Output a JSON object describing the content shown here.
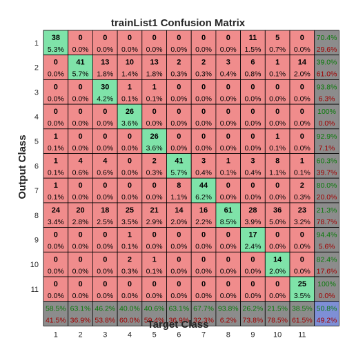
{
  "chart_data": {
    "type": "heatmap",
    "title": "trainList1 Confusion Matrix",
    "xlabel": "Target Class",
    "ylabel": "Output Class",
    "x_ticks": [
      "1",
      "2",
      "3",
      "4",
      "5",
      "6",
      "7",
      "8",
      "9",
      "10",
      "11"
    ],
    "y_ticks": [
      "1",
      "2",
      "3",
      "4",
      "5",
      "6",
      "7",
      "8",
      "9",
      "10",
      "11"
    ],
    "counts": [
      [
        "38",
        "0",
        "0",
        "0",
        "0",
        "0",
        "0",
        "0",
        "11",
        "5",
        "0"
      ],
      [
        "0",
        "41",
        "13",
        "10",
        "13",
        "2",
        "2",
        "3",
        "6",
        "1",
        "14"
      ],
      [
        "0",
        "0",
        "30",
        "1",
        "1",
        "0",
        "0",
        "0",
        "0",
        "0",
        "0"
      ],
      [
        "0",
        "0",
        "0",
        "26",
        "0",
        "0",
        "0",
        "0",
        "0",
        "0",
        "0"
      ],
      [
        "1",
        "0",
        "0",
        "0",
        "26",
        "0",
        "0",
        "0",
        "0",
        "1",
        "0"
      ],
      [
        "1",
        "4",
        "4",
        "0",
        "2",
        "41",
        "3",
        "1",
        "3",
        "8",
        "1"
      ],
      [
        "1",
        "0",
        "0",
        "0",
        "0",
        "8",
        "44",
        "0",
        "0",
        "0",
        "2"
      ],
      [
        "24",
        "20",
        "18",
        "25",
        "21",
        "14",
        "16",
        "61",
        "28",
        "36",
        "23"
      ],
      [
        "0",
        "0",
        "0",
        "1",
        "0",
        "0",
        "0",
        "0",
        "17",
        "0",
        "0"
      ],
      [
        "0",
        "0",
        "0",
        "2",
        "1",
        "0",
        "0",
        "0",
        "0",
        "14",
        "0"
      ],
      [
        "0",
        "0",
        "0",
        "0",
        "0",
        "0",
        "0",
        "0",
        "0",
        "0",
        "25"
      ]
    ],
    "percents": [
      [
        "5.3%",
        "0.0%",
        "0.0%",
        "0.0%",
        "0.0%",
        "0.0%",
        "0.0%",
        "0.0%",
        "1.5%",
        "0.7%",
        "0.0%"
      ],
      [
        "0.0%",
        "5.7%",
        "1.8%",
        "1.4%",
        "1.8%",
        "0.3%",
        "0.3%",
        "0.4%",
        "0.8%",
        "0.1%",
        "2.0%"
      ],
      [
        "0.0%",
        "0.0%",
        "4.2%",
        "0.1%",
        "0.1%",
        "0.0%",
        "0.0%",
        "0.0%",
        "0.0%",
        "0.0%",
        "0.0%"
      ],
      [
        "0.0%",
        "0.0%",
        "0.0%",
        "3.6%",
        "0.0%",
        "0.0%",
        "0.0%",
        "0.0%",
        "0.0%",
        "0.0%",
        "0.0%"
      ],
      [
        "0.1%",
        "0.0%",
        "0.0%",
        "0.0%",
        "3.6%",
        "0.0%",
        "0.0%",
        "0.0%",
        "0.0%",
        "0.1%",
        "0.0%"
      ],
      [
        "0.1%",
        "0.6%",
        "0.6%",
        "0.0%",
        "0.3%",
        "5.7%",
        "0.4%",
        "0.1%",
        "0.4%",
        "1.1%",
        "0.1%"
      ],
      [
        "0.1%",
        "0.0%",
        "0.0%",
        "0.0%",
        "0.0%",
        "1.1%",
        "6.2%",
        "0.0%",
        "0.0%",
        "0.0%",
        "0.3%"
      ],
      [
        "3.4%",
        "2.8%",
        "2.5%",
        "3.5%",
        "2.9%",
        "2.0%",
        "2.2%",
        "8.5%",
        "3.9%",
        "5.0%",
        "3.2%"
      ],
      [
        "0.0%",
        "0.0%",
        "0.0%",
        "0.1%",
        "0.0%",
        "0.0%",
        "0.0%",
        "0.0%",
        "2.4%",
        "0.0%",
        "0.0%"
      ],
      [
        "0.0%",
        "0.0%",
        "0.0%",
        "0.3%",
        "0.1%",
        "0.0%",
        "0.0%",
        "0.0%",
        "0.0%",
        "2.0%",
        "0.0%"
      ],
      [
        "0.0%",
        "0.0%",
        "0.0%",
        "0.0%",
        "0.0%",
        "0.0%",
        "0.0%",
        "0.0%",
        "0.0%",
        "0.0%",
        "3.5%"
      ]
    ],
    "row_summary": [
      [
        "70.4%",
        "29.6%"
      ],
      [
        "39.0%",
        "61.0%"
      ],
      [
        "93.8%",
        "6.3%"
      ],
      [
        "100%",
        "0.0%"
      ],
      [
        "92.9%",
        "7.1%"
      ],
      [
        "60.3%",
        "39.7%"
      ],
      [
        "80.0%",
        "20.0%"
      ],
      [
        "21.3%",
        "78.7%"
      ],
      [
        "94.4%",
        "5.6%"
      ],
      [
        "82.4%",
        "17.6%"
      ],
      [
        "100%",
        "0.0%"
      ]
    ],
    "col_summary": [
      [
        "58.5%",
        "41.5%"
      ],
      [
        "63.1%",
        "36.9%"
      ],
      [
        "46.2%",
        "53.8%"
      ],
      [
        "40.0%",
        "60.0%"
      ],
      [
        "40.6%",
        "59.4%"
      ],
      [
        "63.1%",
        "36.9%"
      ],
      [
        "67.7%",
        "32.3%"
      ],
      [
        "93.8%",
        "6.2%"
      ],
      [
        "26.2%",
        "73.8%"
      ],
      [
        "21.5%",
        "78.5%"
      ],
      [
        "38.5%",
        "61.5%"
      ]
    ],
    "overall": [
      "50.8%",
      "49.2%"
    ],
    "colors": {
      "correct": "#7fe3a9",
      "incorrect": "#f08c8c",
      "summary": "#8c8c8c",
      "overall": "#7e8fd6",
      "grid": "#000000",
      "text_green": "#0a7a0a",
      "text_red": "#a00000"
    }
  }
}
